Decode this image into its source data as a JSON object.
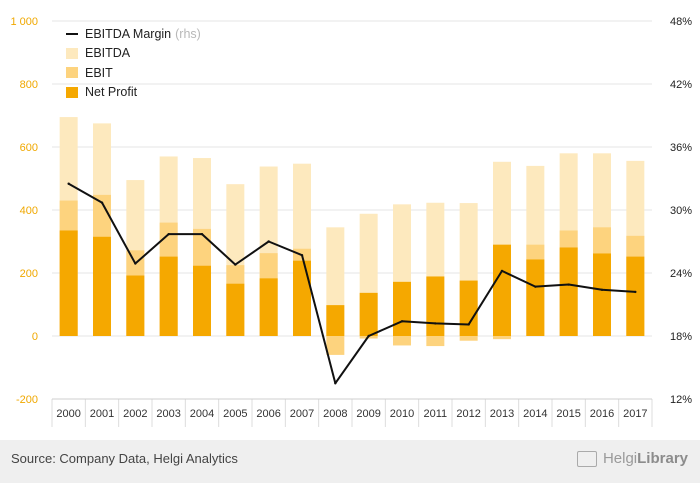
{
  "chart_data": {
    "type": "bar",
    "categories": [
      "2000",
      "2001",
      "2002",
      "2003",
      "2004",
      "2005",
      "2006",
      "2007",
      "2008",
      "2009",
      "2010",
      "2011",
      "2012",
      "2013",
      "2014",
      "2015",
      "2016",
      "2017"
    ],
    "series": [
      {
        "name": "EBITDA",
        "kind": "bar",
        "axis": "left",
        "color": "#fde9be",
        "values": [
          695,
          675,
          495,
          570,
          565,
          482,
          538,
          547,
          345,
          388,
          418,
          423,
          422,
          553,
          540,
          580,
          580,
          556
        ]
      },
      {
        "name": "EBIT",
        "kind": "bar",
        "axis": "left",
        "color": "#fdd37e",
        "values": [
          430,
          448,
          272,
          360,
          340,
          225,
          263,
          277,
          -60,
          -8,
          -30,
          -32,
          -15,
          -10,
          290,
          335,
          345,
          318
        ]
      },
      {
        "name": "Net Profit",
        "kind": "bar",
        "axis": "left",
        "color": "#f5a800",
        "values": [
          335,
          315,
          192,
          252,
          223,
          166,
          183,
          239,
          98,
          137,
          172,
          189,
          176,
          290,
          243,
          281,
          262,
          252
        ]
      },
      {
        "name": "EBITDA Margin",
        "name_note": "(rhs)",
        "kind": "line",
        "axis": "right",
        "color": "#111111",
        "values": [
          32.5,
          30.7,
          24.9,
          27.7,
          27.7,
          24.8,
          27.0,
          25.7,
          13.5,
          18.0,
          19.4,
          19.2,
          19.1,
          24.2,
          22.7,
          22.9,
          22.4,
          22.2
        ]
      }
    ],
    "ylim": [
      -200,
      1000
    ],
    "yticks": [
      -200,
      0,
      200,
      400,
      600,
      800,
      1000
    ],
    "ytick_labels": [
      "-200",
      "0",
      "200",
      "400",
      "600",
      "800",
      "1 000"
    ],
    "y2lim": [
      12,
      48
    ],
    "y2ticks": [
      12,
      18,
      24,
      30,
      36,
      42,
      48
    ],
    "y2tick_labels": [
      "12%",
      "18%",
      "24%",
      "30%",
      "36%",
      "42%",
      "48%"
    ],
    "grid": true,
    "legend_position": "top-left",
    "left_axis_color": "#f0a800",
    "right_axis_color": "#222222"
  },
  "footer": {
    "source": "Source: Company Data, Helgi Analytics",
    "brand_prefix": "Helgi",
    "brand_suffix": "Library"
  },
  "icons": [
    "helgi-library-logo-icon"
  ]
}
